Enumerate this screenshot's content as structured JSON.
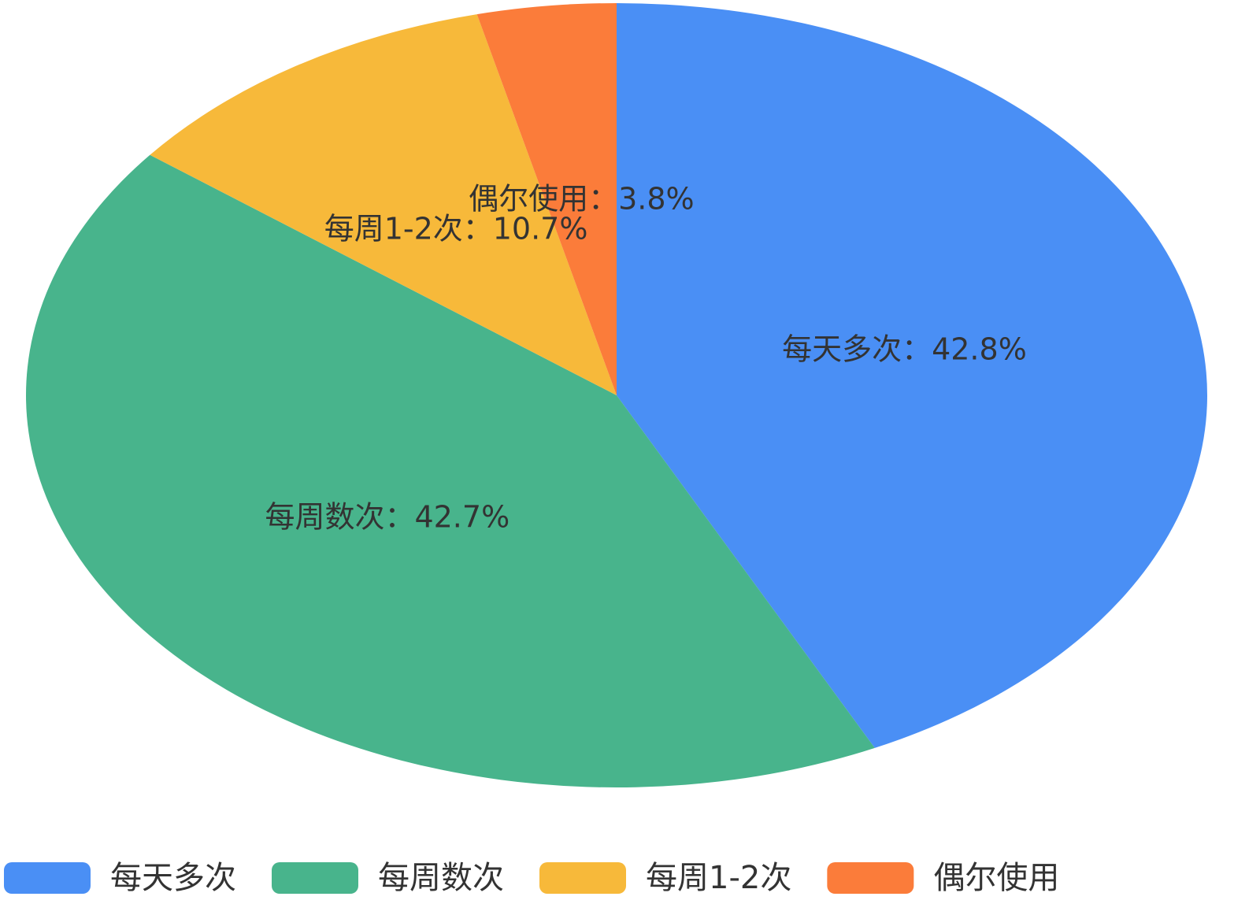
{
  "chart_data": {
    "type": "pie",
    "categories": [
      "每天多次",
      "每周数次",
      "每周1-2次",
      "偶尔使用"
    ],
    "values": [
      42.8,
      42.7,
      10.7,
      3.8
    ],
    "value_labels": [
      "每天多次：42.8%",
      "每周数次：42.7%",
      "每周1-2次：10.7%",
      "偶尔使用：3.8%"
    ],
    "colors": [
      "#4a8ff5",
      "#48b48c",
      "#f7b93a",
      "#fb7c3a"
    ],
    "legend": "bottom"
  }
}
